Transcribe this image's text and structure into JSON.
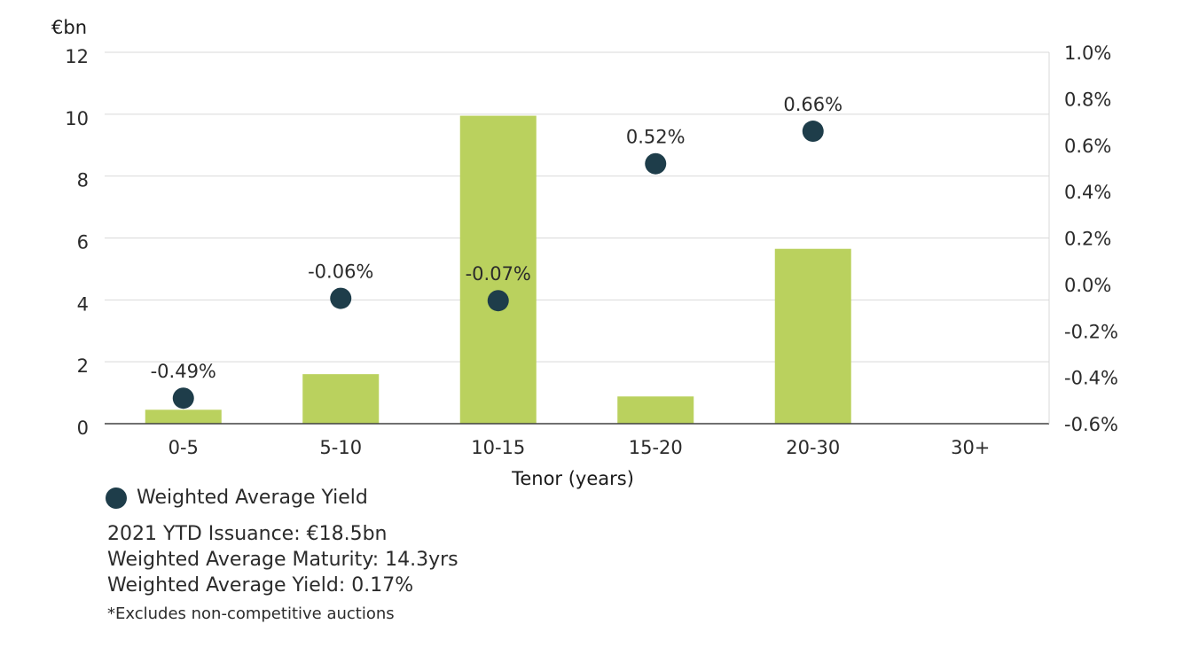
{
  "chart_data": {
    "type": "bar",
    "categories": [
      "0-5",
      "5-10",
      "10-15",
      "15-20",
      "20-30",
      "30+"
    ],
    "xlabel": "Tenor (years)",
    "ylabel": "€bn",
    "ylim": [
      0,
      12
    ],
    "y_ticks": [
      "0",
      "2",
      "4",
      "6",
      "8",
      "10",
      "12"
    ],
    "y2lim": [
      -0.6,
      1.0
    ],
    "y2_ticks": [
      "-0.6%",
      "-0.4%",
      "-0.2%",
      "0.0%",
      "0.2%",
      "0.4%",
      "0.6%",
      "0.8%",
      "1.0%"
    ],
    "grid": true,
    "series": [
      {
        "type": "bar",
        "axis": "left",
        "color": "#bad15e",
        "values": [
          0.45,
          1.6,
          9.95,
          0.88,
          5.65,
          0
        ]
      },
      {
        "name": "Weighted Average Yield",
        "type": "scatter",
        "axis": "right",
        "color": "#1e3d4a",
        "values": [
          -0.49,
          -0.06,
          -0.07,
          0.52,
          0.66,
          null
        ],
        "labels": [
          "-0.49%",
          "-0.06%",
          "-0.07%",
          "0.52%",
          "0.66%",
          null
        ]
      }
    ],
    "legend": {
      "position": "bottom-left",
      "label": "Weighted Average Yield"
    }
  },
  "notes": {
    "issuance": "2021 YTD Issuance: €18.5bn",
    "maturity": "Weighted Average Maturity: 14.3yrs",
    "yield": "Weighted Average Yield: 0.17%",
    "footnote": "*Excludes non-competitive auctions"
  }
}
